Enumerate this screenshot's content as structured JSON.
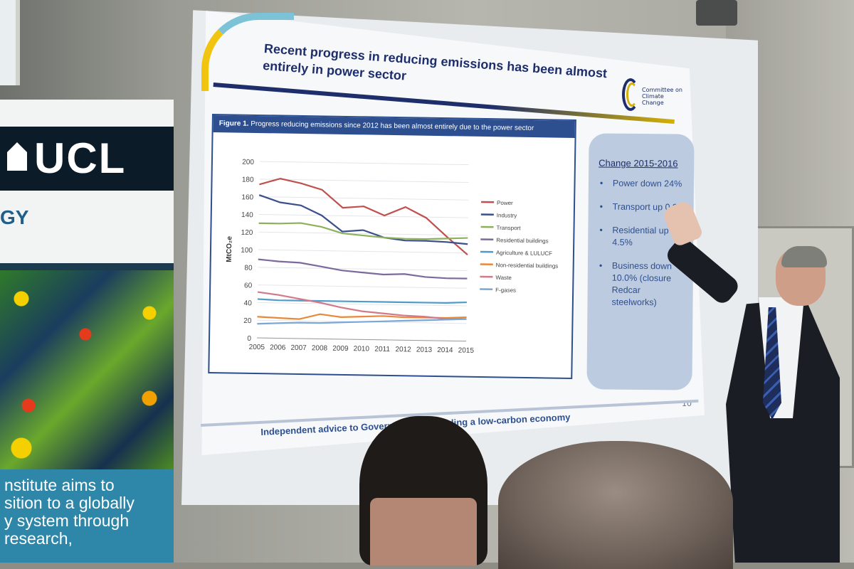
{
  "banner": {
    "logo_text": "UCL",
    "partial_word": "GY",
    "body_lines": [
      "nstitute aims to",
      "sition to a globally",
      "y system through",
      "research,"
    ]
  },
  "slide": {
    "title": "Recent progress in reducing emissions has been almost entirely in power sector",
    "logo_text": "Committee on Climate Change",
    "figure_label": "Figure 1.",
    "figure_caption": "Progress reducing emissions since 2012 has been almost entirely due to the power sector",
    "callout": {
      "title": "Change 2015-2016",
      "bullets": [
        "Power down 24%",
        "Transport up 0.9%",
        "Residential up 4.5%",
        "Business down 10.0% (closure Redcar steelworks)"
      ]
    },
    "page_number": "10",
    "footer": "Independent advice to Government on building a low-carbon economy"
  },
  "chart_data": {
    "type": "line",
    "x": [
      2005,
      2006,
      2007,
      2008,
      2009,
      2010,
      2011,
      2012,
      2013,
      2014,
      2015
    ],
    "ylabel": "MtCO₂e",
    "ylim": [
      0,
      200
    ],
    "yticks": [
      0,
      20,
      40,
      60,
      80,
      100,
      120,
      140,
      160,
      180,
      200
    ],
    "legend_position": "right",
    "grid": true,
    "series": [
      {
        "name": "Power",
        "color": "#c0504d",
        "values": [
          174,
          181,
          176,
          169,
          149,
          151,
          141,
          151,
          139,
          118,
          98
        ]
      },
      {
        "name": "Industry",
        "color": "#3b4f8c",
        "values": [
          162,
          154,
          151,
          140,
          122,
          124,
          116,
          113,
          113,
          112,
          110
        ]
      },
      {
        "name": "Transport",
        "color": "#8db05a",
        "values": [
          130,
          130,
          131,
          127,
          120,
          118,
          116,
          115,
          115,
          116,
          117
        ]
      },
      {
        "name": "Residential buildings",
        "color": "#7a6a9e",
        "values": [
          89,
          87,
          86,
          82,
          78,
          76,
          74,
          75,
          72,
          71,
          71
        ]
      },
      {
        "name": "Agriculture & LULUCF",
        "color": "#4f9bc9",
        "values": [
          44,
          43,
          43,
          43,
          43,
          43,
          43,
          43,
          43,
          43,
          44
        ]
      },
      {
        "name": "Non-residential buildings",
        "color": "#e8883a",
        "values": [
          24,
          23,
          22,
          28,
          25,
          26,
          27,
          26,
          26,
          26,
          27
        ]
      },
      {
        "name": "Waste",
        "color": "#d27a8a",
        "values": [
          52,
          49,
          45,
          41,
          36,
          32,
          30,
          28,
          27,
          25,
          25
        ]
      },
      {
        "name": "F-gases",
        "color": "#7aa7d6",
        "values": [
          16,
          17,
          18,
          18,
          19,
          20,
          21,
          22,
          23,
          24,
          25
        ]
      }
    ]
  }
}
